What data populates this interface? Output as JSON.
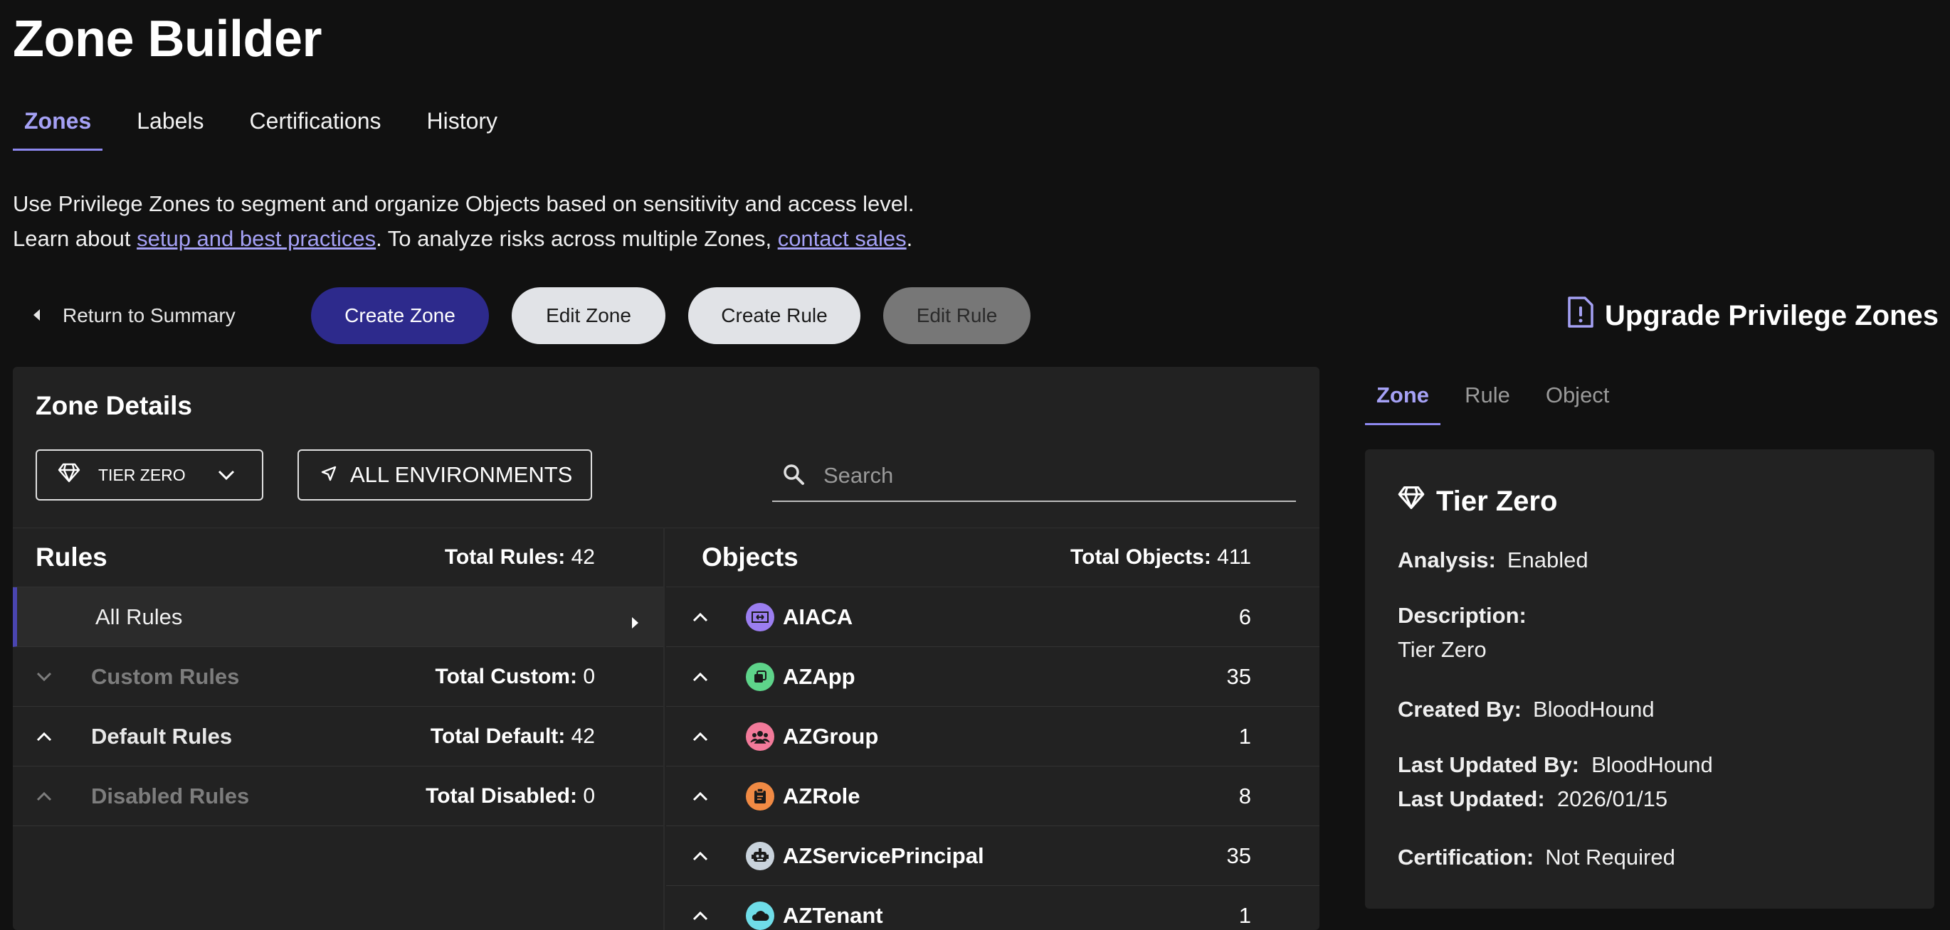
{
  "page": {
    "title": "Zone Builder"
  },
  "main_tabs": [
    {
      "label": "Zones",
      "active": true
    },
    {
      "label": "Labels",
      "active": false
    },
    {
      "label": "Certifications",
      "active": false
    },
    {
      "label": "History",
      "active": false
    }
  ],
  "intro": {
    "line1": "Use Privilege Zones to segment and organize Objects based on sensitivity and access level.",
    "line2_prefix": "Learn about ",
    "link1": "setup and best practices",
    "line2_middle": ". To analyze risks across multiple Zones, ",
    "link2": "contact sales",
    "line2_suffix": "."
  },
  "toolbar": {
    "return_label": "Return to Summary",
    "create_zone": "Create Zone",
    "edit_zone": "Edit Zone",
    "create_rule": "Create Rule",
    "edit_rule": "Edit Rule",
    "upgrade": "Upgrade Privilege Zones"
  },
  "zone_details": {
    "title": "Zone Details",
    "tier_select": "TIER ZERO",
    "env_select": "ALL ENVIRONMENTS",
    "search_placeholder": "Search"
  },
  "rules": {
    "title": "Rules",
    "total_label": "Total Rules:",
    "total_value": "42",
    "items": [
      {
        "label": "All Rules",
        "total_label": "",
        "total_value": ""
      },
      {
        "label": "Custom Rules",
        "total_label": "Total Custom:",
        "total_value": "0"
      },
      {
        "label": "Default Rules",
        "total_label": "Total Default:",
        "total_value": "42"
      },
      {
        "label": "Disabled Rules",
        "total_label": "Total Disabled:",
        "total_value": "0"
      }
    ]
  },
  "objects": {
    "title": "Objects",
    "total_label": "Total Objects:",
    "total_value": "411",
    "items": [
      {
        "name": "AIACA",
        "count": "6",
        "icon": "certificate-authority-icon",
        "color": "#9b7ef0"
      },
      {
        "name": "AZApp",
        "count": "35",
        "icon": "app-icon",
        "color": "#5ed48a"
      },
      {
        "name": "AZGroup",
        "count": "1",
        "icon": "group-icon",
        "color": "#f27a9a"
      },
      {
        "name": "AZRole",
        "count": "8",
        "icon": "role-icon",
        "color": "#f08a44"
      },
      {
        "name": "AZServicePrincipal",
        "count": "35",
        "icon": "robot-icon",
        "color": "#c9d3dc"
      },
      {
        "name": "AZTenant",
        "count": "1",
        "icon": "cloud-icon",
        "color": "#6fdde8"
      }
    ]
  },
  "side_tabs": [
    {
      "label": "Zone",
      "active": true
    },
    {
      "label": "Rule",
      "active": false
    },
    {
      "label": "Object",
      "active": false
    }
  ],
  "zone_card": {
    "title": "Tier Zero",
    "analysis_label": "Analysis:",
    "analysis_value": "Enabled",
    "description_label": "Description:",
    "description_value": "Tier Zero",
    "created_by_label": "Created By:",
    "created_by_value": "BloodHound",
    "last_updated_by_label": "Last Updated By:",
    "last_updated_by_value": "BloodHound",
    "last_updated_label": "Last Updated:",
    "last_updated_value": "2026/01/15",
    "certification_label": "Certification:",
    "certification_value": "Not Required"
  }
}
